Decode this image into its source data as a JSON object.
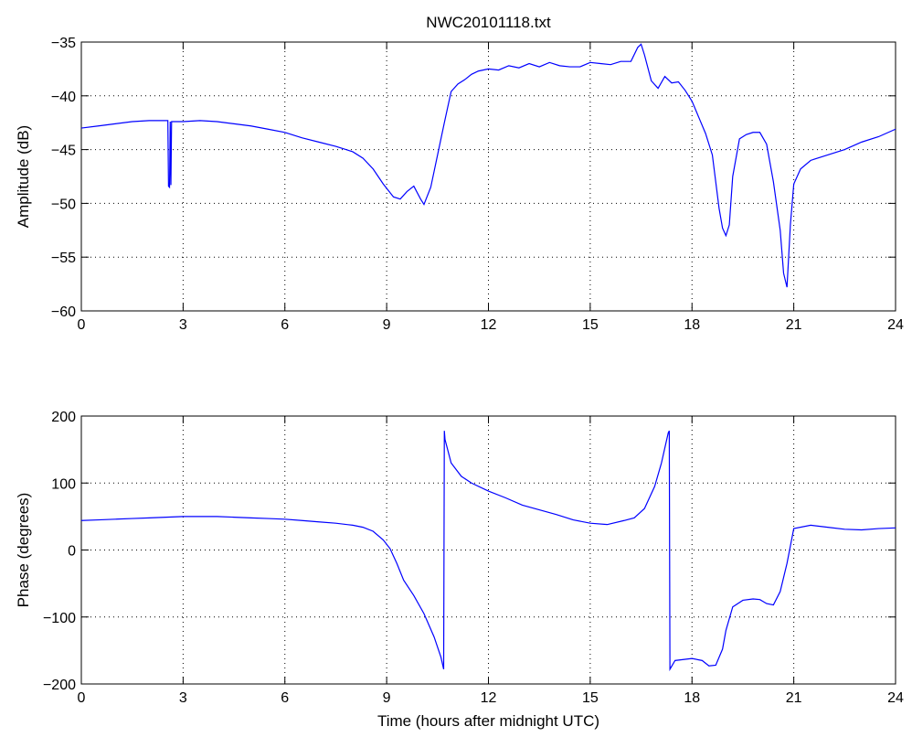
{
  "chart_data": [
    {
      "type": "line",
      "title": "NWC20101118.txt",
      "xlabel": "",
      "ylabel": "Amplitude (dB)",
      "xlim": [
        0,
        24
      ],
      "ylim": [
        -60,
        -35
      ],
      "xticks": [
        0,
        3,
        6,
        9,
        12,
        15,
        18,
        21,
        24
      ],
      "yticks": [
        -60,
        -55,
        -50,
        -45,
        -40,
        -35
      ],
      "grid": true,
      "colors": {
        "line": "#0000ff",
        "axes": "#000000",
        "background": "#ffffff"
      },
      "series": [
        {
          "x": [
            0,
            0.5,
            1,
            1.5,
            2,
            2.5,
            2.55,
            2.57,
            2.6,
            2.62,
            2.64,
            2.66,
            2.7,
            3,
            3.5,
            4,
            4.5,
            5,
            5.5,
            6,
            6.5,
            7,
            7.5,
            8,
            8.3,
            8.6,
            8.9,
            9.2,
            9.4,
            9.6,
            9.8,
            10,
            10.1,
            10.3,
            10.5,
            10.7,
            10.9,
            11.1,
            11.3,
            11.5,
            11.7,
            12,
            12.3,
            12.6,
            12.9,
            13.2,
            13.5,
            13.8,
            14.1,
            14.4,
            14.7,
            15,
            15.3,
            15.6,
            15.9,
            16.2,
            16.4,
            16.5,
            16.6,
            16.8,
            17,
            17.2,
            17.4,
            17.6,
            17.8,
            18,
            18.2,
            18.4,
            18.6,
            18.8,
            18.9,
            19.0,
            19.1,
            19.2,
            19.4,
            19.6,
            19.8,
            20.0,
            20.2,
            20.4,
            20.6,
            20.7,
            20.8,
            20.9,
            21.0,
            21.2,
            21.5,
            22,
            22.5,
            23,
            23.5,
            24
          ],
          "y": [
            -43.0,
            -42.8,
            -42.6,
            -42.4,
            -42.3,
            -42.3,
            -42.3,
            -48.4,
            -48.5,
            -42.4,
            -48.3,
            -42.4,
            -42.4,
            -42.4,
            -42.3,
            -42.4,
            -42.6,
            -42.8,
            -43.1,
            -43.4,
            -43.9,
            -44.3,
            -44.7,
            -45.2,
            -45.8,
            -46.8,
            -48.2,
            -49.4,
            -49.6,
            -48.9,
            -48.4,
            -49.6,
            -50.1,
            -48.5,
            -45.5,
            -42.5,
            -39.6,
            -38.9,
            -38.5,
            -38.0,
            -37.7,
            -37.5,
            -37.6,
            -37.2,
            -37.4,
            -37.0,
            -37.3,
            -36.9,
            -37.2,
            -37.3,
            -37.3,
            -36.9,
            -37.0,
            -37.1,
            -36.8,
            -36.8,
            -35.5,
            -35.2,
            -36.2,
            -38.6,
            -39.3,
            -38.2,
            -38.8,
            -38.7,
            -39.5,
            -40.5,
            -42.0,
            -43.5,
            -45.5,
            -50.5,
            -52.3,
            -53.0,
            -52.0,
            -47.5,
            -44.0,
            -43.6,
            -43.4,
            -43.4,
            -44.5,
            -48.0,
            -52.5,
            -56.5,
            -57.8,
            -52.0,
            -48.2,
            -46.8,
            -46.0,
            -45.5,
            -45.0,
            -44.3,
            -43.8,
            -43.1
          ]
        }
      ]
    },
    {
      "type": "line",
      "title": "",
      "xlabel": "Time (hours after midnight UTC)",
      "ylabel": "Phase (degrees)",
      "xlim": [
        0,
        24
      ],
      "ylim": [
        -200,
        200
      ],
      "xticks": [
        0,
        3,
        6,
        9,
        12,
        15,
        18,
        21,
        24
      ],
      "yticks": [
        -200,
        -100,
        0,
        100,
        200
      ],
      "grid": true,
      "colors": {
        "line": "#0000ff",
        "axes": "#000000",
        "background": "#ffffff"
      },
      "series": [
        {
          "x": [
            0,
            0.5,
            1,
            1.5,
            2,
            2.5,
            3,
            3.5,
            4,
            4.5,
            5,
            5.5,
            6,
            6.5,
            7,
            7.5,
            8,
            8.3,
            8.6,
            8.9,
            9.1,
            9.3,
            9.5,
            9.8,
            10.1,
            10.4,
            10.6,
            10.68,
            10.7,
            10.72,
            10.9,
            11.2,
            11.5,
            12,
            12.5,
            13,
            13.5,
            14,
            14.5,
            15,
            15.5,
            16,
            16.3,
            16.6,
            16.9,
            17.1,
            17.3,
            17.33,
            17.35,
            17.5,
            18,
            18.3,
            18.5,
            18.7,
            18.9,
            19.0,
            19.2,
            19.5,
            19.8,
            20.0,
            20.2,
            20.4,
            20.6,
            20.8,
            21.0,
            21.5,
            22,
            22.5,
            23,
            23.5,
            24
          ],
          "y": [
            44,
            45,
            46,
            47,
            48,
            49,
            50,
            50,
            50,
            49,
            48,
            47,
            46,
            44,
            42,
            40,
            37,
            34,
            28,
            15,
            2,
            -20,
            -45,
            -68,
            -95,
            -130,
            -160,
            -178,
            178,
            165,
            130,
            110,
            100,
            88,
            78,
            67,
            60,
            53,
            45,
            40,
            38,
            44,
            48,
            62,
            95,
            130,
            175,
            178,
            -178,
            -165,
            -162,
            -165,
            -173,
            -172,
            -148,
            -120,
            -85,
            -75,
            -73,
            -74,
            -80,
            -82,
            -62,
            -20,
            32,
            37,
            34,
            31,
            30,
            32,
            33
          ]
        }
      ]
    }
  ]
}
